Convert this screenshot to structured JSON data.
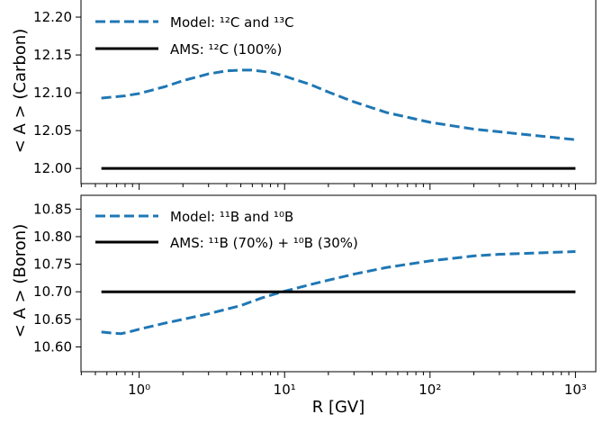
{
  "chart_data": [
    {
      "type": "line",
      "ylabel": "< A >  (Carbon)",
      "xscale": "log",
      "xlim": [
        0.3982,
        1380
      ],
      "ylim": [
        11.98,
        12.225
      ],
      "yticks": [
        "12.00",
        "12.05",
        "12.10",
        "12.15",
        "12.20"
      ],
      "legend_position": "top-left",
      "series": [
        {
          "name": "Model: ¹²C and ¹³C",
          "color": "#1f77b4",
          "style": "dashed",
          "x": [
            0.55,
            0.8,
            1.0,
            1.5,
            2,
            3,
            4,
            5,
            6,
            8,
            10,
            15,
            20,
            30,
            50,
            100,
            200,
            500,
            1000
          ],
          "y": [
            12.093,
            12.096,
            12.099,
            12.108,
            12.116,
            12.125,
            12.129,
            12.13,
            12.13,
            12.127,
            12.122,
            12.111,
            12.101,
            12.088,
            12.074,
            12.061,
            12.052,
            12.044,
            12.038
          ]
        },
        {
          "name": "AMS: ¹²C (100%)",
          "color": "#000000",
          "style": "solid",
          "x": [
            0.55,
            1000
          ],
          "y": [
            12.0,
            12.0
          ]
        }
      ]
    },
    {
      "type": "line",
      "ylabel": "< A >  (Boron)",
      "xlabel": "R [GV]",
      "xscale": "log",
      "xlim": [
        0.3982,
        1380
      ],
      "ylim": [
        10.555,
        10.875
      ],
      "yticks": [
        "10.60",
        "10.65",
        "10.70",
        "10.75",
        "10.80",
        "10.85"
      ],
      "xticks": [
        {
          "value": 1,
          "label": "10⁰"
        },
        {
          "value": 10,
          "label": "10¹"
        },
        {
          "value": 100,
          "label": "10²"
        },
        {
          "value": 1000,
          "label": "10³"
        }
      ],
      "legend_position": "top-left",
      "series": [
        {
          "name": "Model: ¹¹B and ¹⁰B",
          "color": "#1f77b4",
          "style": "dashed",
          "x": [
            0.55,
            0.65,
            0.75,
            0.85,
            1.0,
            1.5,
            2,
            3,
            5,
            7,
            10,
            15,
            20,
            30,
            50,
            100,
            200,
            300,
            500,
            1000
          ],
          "y": [
            10.627,
            10.625,
            10.624,
            10.627,
            10.632,
            10.643,
            10.65,
            10.66,
            10.675,
            10.689,
            10.701,
            10.713,
            10.721,
            10.732,
            10.744,
            10.756,
            10.765,
            10.768,
            10.77,
            10.773
          ]
        },
        {
          "name": "AMS: ¹¹B (70%) + ¹⁰B (30%)",
          "color": "#000000",
          "style": "solid",
          "x": [
            0.55,
            1000
          ],
          "y": [
            10.7,
            10.7
          ]
        }
      ]
    }
  ]
}
